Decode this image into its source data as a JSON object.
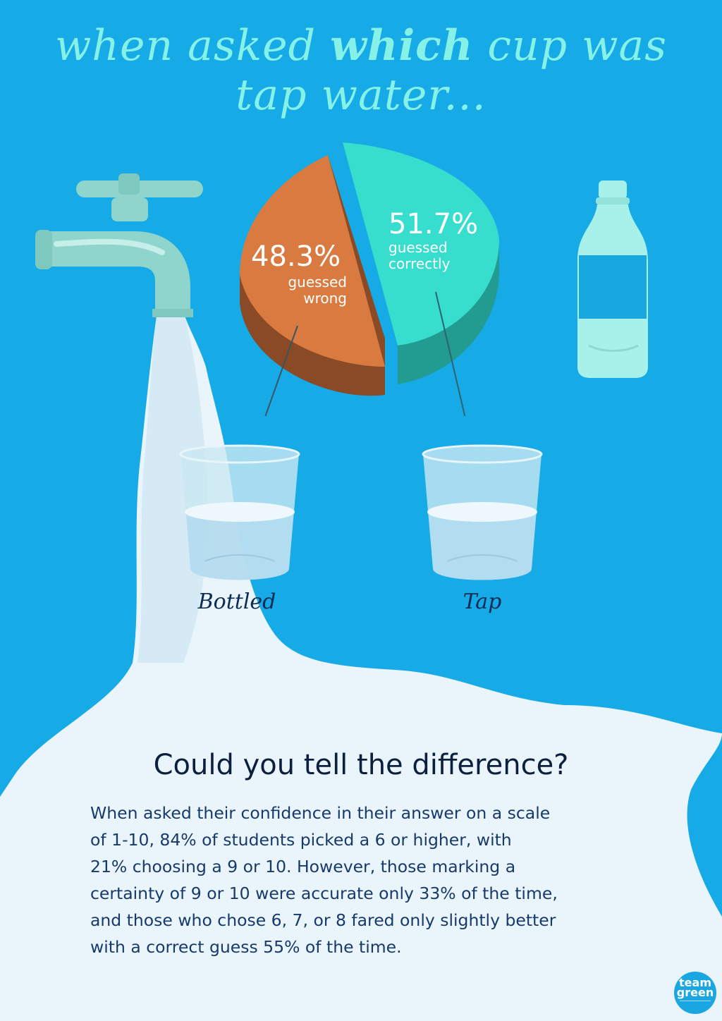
{
  "title": {
    "line1_pre": "when asked ",
    "line1_bold": "which",
    "line1_post": " cup was",
    "line2": "tap water..."
  },
  "pie": {
    "wrong_pct": "48.3%",
    "wrong_line1": "guessed",
    "wrong_line2": "wrong",
    "correct_pct": "51.7%",
    "correct_line1": "guessed",
    "correct_line2": "correctly"
  },
  "cups": {
    "left_label": "Bottled",
    "right_label": "Tap"
  },
  "heading": "Could you tell the difference?",
  "body_lines": [
    "When asked their confidence in their answer on a scale",
    "of 1-10,  84% of students picked a 6 or higher, with",
    "21% choosing a 9 or 10. However, those marking a",
    "certainty of 9 or 10 were accurate only 33% of the time,",
    "and those who chose 6, 7, or 8 fared only slightly better",
    "with a correct guess 55% of the time."
  ],
  "logo": {
    "line1": "team",
    "line2": "green"
  },
  "colors": {
    "background": "#16aae6",
    "water": "#e9f4fb",
    "faucet": "#8fd5cc",
    "pie_wrong": "#d97b41",
    "pie_wrong_side": "#8a4a25",
    "pie_correct": "#37ddcd",
    "pie_correct_side": "#229b91",
    "bottle": "#a8f1ea",
    "title": "#86f1e6"
  }
}
